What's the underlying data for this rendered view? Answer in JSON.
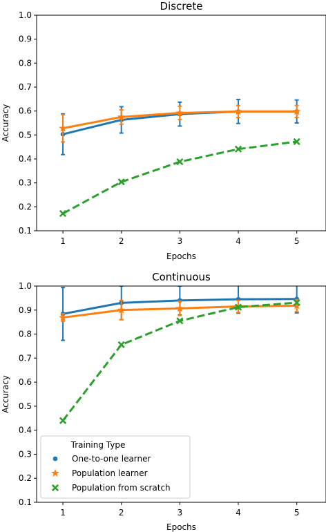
{
  "chart_data": [
    {
      "type": "line",
      "title": "Discrete",
      "xlabel": "Epochs",
      "ylabel": "Accuracy",
      "x": [
        1,
        2,
        3,
        4,
        5
      ],
      "xticks": [
        "1",
        "2",
        "3",
        "4",
        "5"
      ],
      "xlim": [
        0.55,
        5.5
      ],
      "ylim": [
        0.1,
        1.0
      ],
      "yticks": [
        "0.1",
        "0.2",
        "0.3",
        "0.4",
        "0.5",
        "0.6",
        "0.7",
        "0.8",
        "0.9",
        "1.0"
      ],
      "series": [
        {
          "name": "One-to-one learner",
          "color": "#1f77b4",
          "marker": "circle",
          "linestyle": "solid",
          "values": [
            0.503,
            0.563,
            0.587,
            0.598,
            0.598
          ],
          "err": [
            0.085,
            0.055,
            0.05,
            0.05,
            0.048
          ]
        },
        {
          "name": "Population learner",
          "color": "#ff7f0e",
          "marker": "star",
          "linestyle": "solid",
          "values": [
            0.528,
            0.575,
            0.592,
            0.598,
            0.598
          ],
          "err": [
            0.057,
            0.03,
            0.028,
            0.025,
            0.025
          ]
        },
        {
          "name": "Population from scratch",
          "color": "#2ca02c",
          "marker": "x",
          "linestyle": "dashed",
          "values": [
            0.172,
            0.304,
            0.388,
            0.441,
            0.472
          ],
          "err": [
            0,
            0,
            0,
            0,
            0
          ]
        }
      ],
      "legend": null
    },
    {
      "type": "line",
      "title": "Continuous",
      "xlabel": "Epochs",
      "ylabel": "Accuracy",
      "x": [
        1,
        2,
        3,
        4,
        5
      ],
      "xticks": [
        "1",
        "2",
        "3",
        "4",
        "5"
      ],
      "xlim": [
        0.55,
        5.5
      ],
      "ylim": [
        0.1,
        1.0
      ],
      "yticks": [
        "0.1",
        "0.2",
        "0.3",
        "0.4",
        "0.5",
        "0.6",
        "0.7",
        "0.8",
        "0.9",
        "1.0"
      ],
      "series": [
        {
          "name": "One-to-one learner",
          "color": "#1f77b4",
          "marker": "circle",
          "linestyle": "solid",
          "values": [
            0.884,
            0.93,
            0.94,
            0.945,
            0.946
          ],
          "err": [
            0.11,
            0.07,
            0.06,
            0.058,
            0.058
          ]
        },
        {
          "name": "Population learner",
          "color": "#ff7f0e",
          "marker": "star",
          "linestyle": "solid",
          "values": [
            0.869,
            0.9,
            0.907,
            0.915,
            0.918
          ],
          "err": [
            0.015,
            0.04,
            0.03,
            0.025,
            0.025
          ]
        },
        {
          "name": "Population from scratch",
          "color": "#2ca02c",
          "marker": "x",
          "linestyle": "dashed",
          "values": [
            0.44,
            0.756,
            0.855,
            0.912,
            0.931
          ],
          "err": [
            0,
            0,
            0,
            0,
            0
          ]
        }
      ],
      "legend": {
        "title": "Training Type",
        "placement": "lower-left"
      }
    }
  ]
}
